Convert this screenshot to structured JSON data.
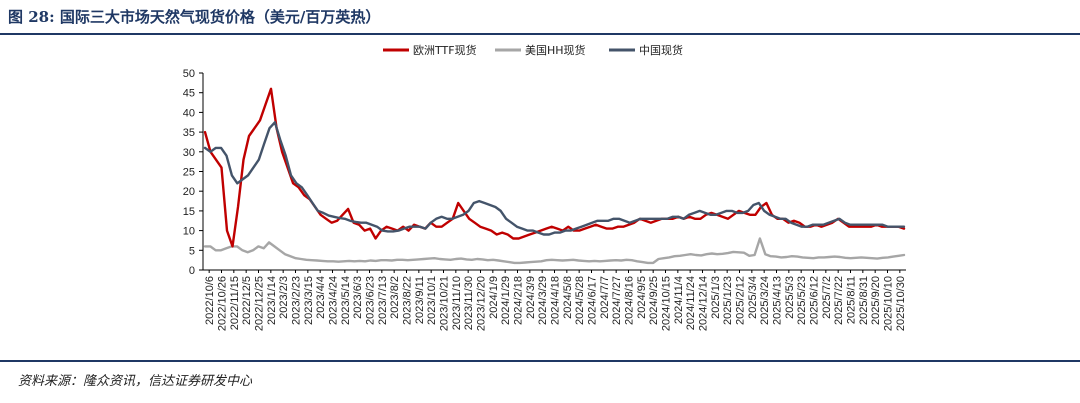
{
  "figure": {
    "title": "图 28:  国际三大市场天然气现货价格（美元/百万英热）",
    "source": "资料来源：隆众资讯，信达证券研发中心"
  },
  "chart_data": {
    "type": "line",
    "xlabel": "",
    "ylabel": "",
    "ylim": [
      0,
      50
    ],
    "yticks": [
      0,
      5,
      10,
      15,
      20,
      25,
      30,
      35,
      40,
      45,
      50
    ],
    "grid": false,
    "legend_position": "top-center",
    "x_tick_labels": [
      "2022/10/6",
      "2022/10/26",
      "2022/11/15",
      "2022/12/5",
      "2022/12/25",
      "2023/1/14",
      "2023/2/3",
      "2023/2/23",
      "2023/3/15",
      "2023/4/4",
      "2023/4/24",
      "2023/5/14",
      "2023/6/3",
      "2023/6/23",
      "2023/7/13",
      "2023/8/2",
      "2023/8/22",
      "2023/9/11",
      "2023/10/1",
      "2023/10/21",
      "2023/11/10",
      "2023/11/30",
      "2023/12/20",
      "2024/1/9",
      "2024/1/29",
      "2024/2/18",
      "2024/3/9",
      "2024/3/29",
      "2024/4/18",
      "2024/5/8",
      "2024/5/28",
      "2024/6/17",
      "2024/7/7",
      "2024/7/27",
      "2024/8/16",
      "2024/9/5",
      "2024/9/25",
      "2024/10/15",
      "2024/11/4",
      "2024/11/24",
      "2024/12/14",
      "2025/1/3",
      "2025/1/23",
      "2025/2/12",
      "2025/3/4",
      "2025/3/24",
      "2025/4/13",
      "2025/5/3",
      "2025/5/23",
      "2025/6/12",
      "2025/7/2",
      "2025/7/22",
      "2025/8/11",
      "2025/8/31",
      "2025/9/20",
      "2025/10/10",
      "2025/10/30"
    ],
    "series": [
      {
        "name": "欧洲TTF现货",
        "color": "#c00000",
        "values": [
          35,
          30,
          28,
          26,
          10,
          6,
          16,
          28,
          34,
          36,
          38,
          42,
          46,
          36,
          30,
          26,
          22,
          21,
          19,
          18,
          16,
          14,
          13,
          12,
          12.5,
          14,
          15.5,
          12,
          11.5,
          10,
          10.5,
          8,
          10,
          11,
          10.5,
          10,
          11,
          10,
          11.5,
          11,
          10.5,
          12,
          11,
          11,
          12,
          13,
          17,
          15,
          13,
          12,
          11,
          10.5,
          10,
          9,
          9.5,
          9,
          8,
          8,
          8.5,
          9,
          9.5,
          10,
          10.5,
          11,
          10.5,
          10,
          11,
          10,
          10,
          10.5,
          11,
          11.5,
          11,
          10.5,
          10.5,
          11,
          11,
          11.5,
          12,
          13,
          12.5,
          12,
          12.5,
          13,
          13,
          13,
          13.5,
          13,
          13.5,
          13,
          13,
          14,
          14.5,
          14,
          13.5,
          13,
          14,
          15,
          14.5,
          14,
          14,
          16,
          17,
          14,
          13,
          13,
          12,
          12.5,
          12,
          11,
          11,
          11.5,
          11,
          11.5,
          12,
          13,
          12,
          11,
          11,
          11,
          11,
          11,
          11.5,
          11,
          11,
          11,
          11,
          10.5
        ]
      },
      {
        "name": "美国HH现货",
        "color": "#a6a6a6",
        "values": [
          6,
          6,
          5,
          5,
          5.5,
          6,
          6,
          5,
          4.5,
          5,
          6,
          5.5,
          7,
          6,
          5,
          4,
          3.5,
          3,
          2.8,
          2.6,
          2.5,
          2.4,
          2.3,
          2.2,
          2.2,
          2.1,
          2.2,
          2.3,
          2.2,
          2.3,
          2.2,
          2.4,
          2.3,
          2.5,
          2.5,
          2.4,
          2.6,
          2.6,
          2.5,
          2.6,
          2.7,
          2.8,
          2.9,
          3,
          2.8,
          2.7,
          2.6,
          2.8,
          2.9,
          2.7,
          2.6,
          2.8,
          2.7,
          2.5,
          2.6,
          2.4,
          2.2,
          2.0,
          1.8,
          1.8,
          1.9,
          2.0,
          2.1,
          2.2,
          2.5,
          2.6,
          2.5,
          2.4,
          2.5,
          2.6,
          2.4,
          2.3,
          2.2,
          2.3,
          2.2,
          2.3,
          2.4,
          2.5,
          2.4,
          2.6,
          2.5,
          2.2,
          2.0,
          1.8,
          1.8,
          2.8,
          3,
          3.2,
          3.5,
          3.6,
          3.8,
          4,
          3.8,
          3.7,
          4,
          4.2,
          4,
          4.1,
          4.3,
          4.6,
          4.5,
          4.4,
          3.6,
          3.8,
          8,
          4,
          3.5,
          3.4,
          3.2,
          3.3,
          3.5,
          3.4,
          3.2,
          3.1,
          3.0,
          3.2,
          3.2,
          3.3,
          3.4,
          3.3,
          3.1,
          3.0,
          3.1,
          3.2,
          3.1,
          3.0,
          2.9,
          3.1,
          3.2,
          3.4,
          3.6,
          3.8
        ]
      },
      {
        "name": "中国现货",
        "color": "#44546a",
        "values": [
          31,
          30,
          31,
          31,
          29,
          24,
          22,
          23,
          24,
          26,
          28,
          32,
          36,
          37.5,
          33,
          29,
          24,
          22,
          21,
          19,
          17,
          15,
          14.5,
          13.8,
          13.5,
          13.2,
          13,
          12.5,
          12.2,
          12,
          12,
          11.5,
          11,
          10,
          9.8,
          9.8,
          10,
          10.5,
          11,
          11,
          11,
          10.5,
          12,
          13,
          13.5,
          13,
          13,
          13.5,
          14,
          15,
          17,
          17.5,
          17,
          16.5,
          16,
          15,
          13,
          12,
          11,
          10.5,
          10,
          10,
          9.5,
          9,
          9,
          9.5,
          9.5,
          10,
          10,
          10.5,
          11,
          11.5,
          12,
          12.5,
          12.5,
          12.5,
          13,
          13,
          12.5,
          12,
          12.5,
          13,
          13,
          13,
          13,
          13,
          13,
          13.5,
          13.5,
          13,
          14,
          14.5,
          15,
          14.5,
          14,
          14,
          14.5,
          15,
          15,
          14.5,
          14.5,
          15,
          16.5,
          17,
          15,
          14,
          13.5,
          13,
          13,
          12,
          11.5,
          11,
          11,
          11.5,
          11.5,
          11.5,
          12,
          12.5,
          13,
          12,
          11.5,
          11.5,
          11.5,
          11.5,
          11.5,
          11.5,
          11.5,
          11,
          11,
          11,
          11
        ]
      }
    ]
  }
}
